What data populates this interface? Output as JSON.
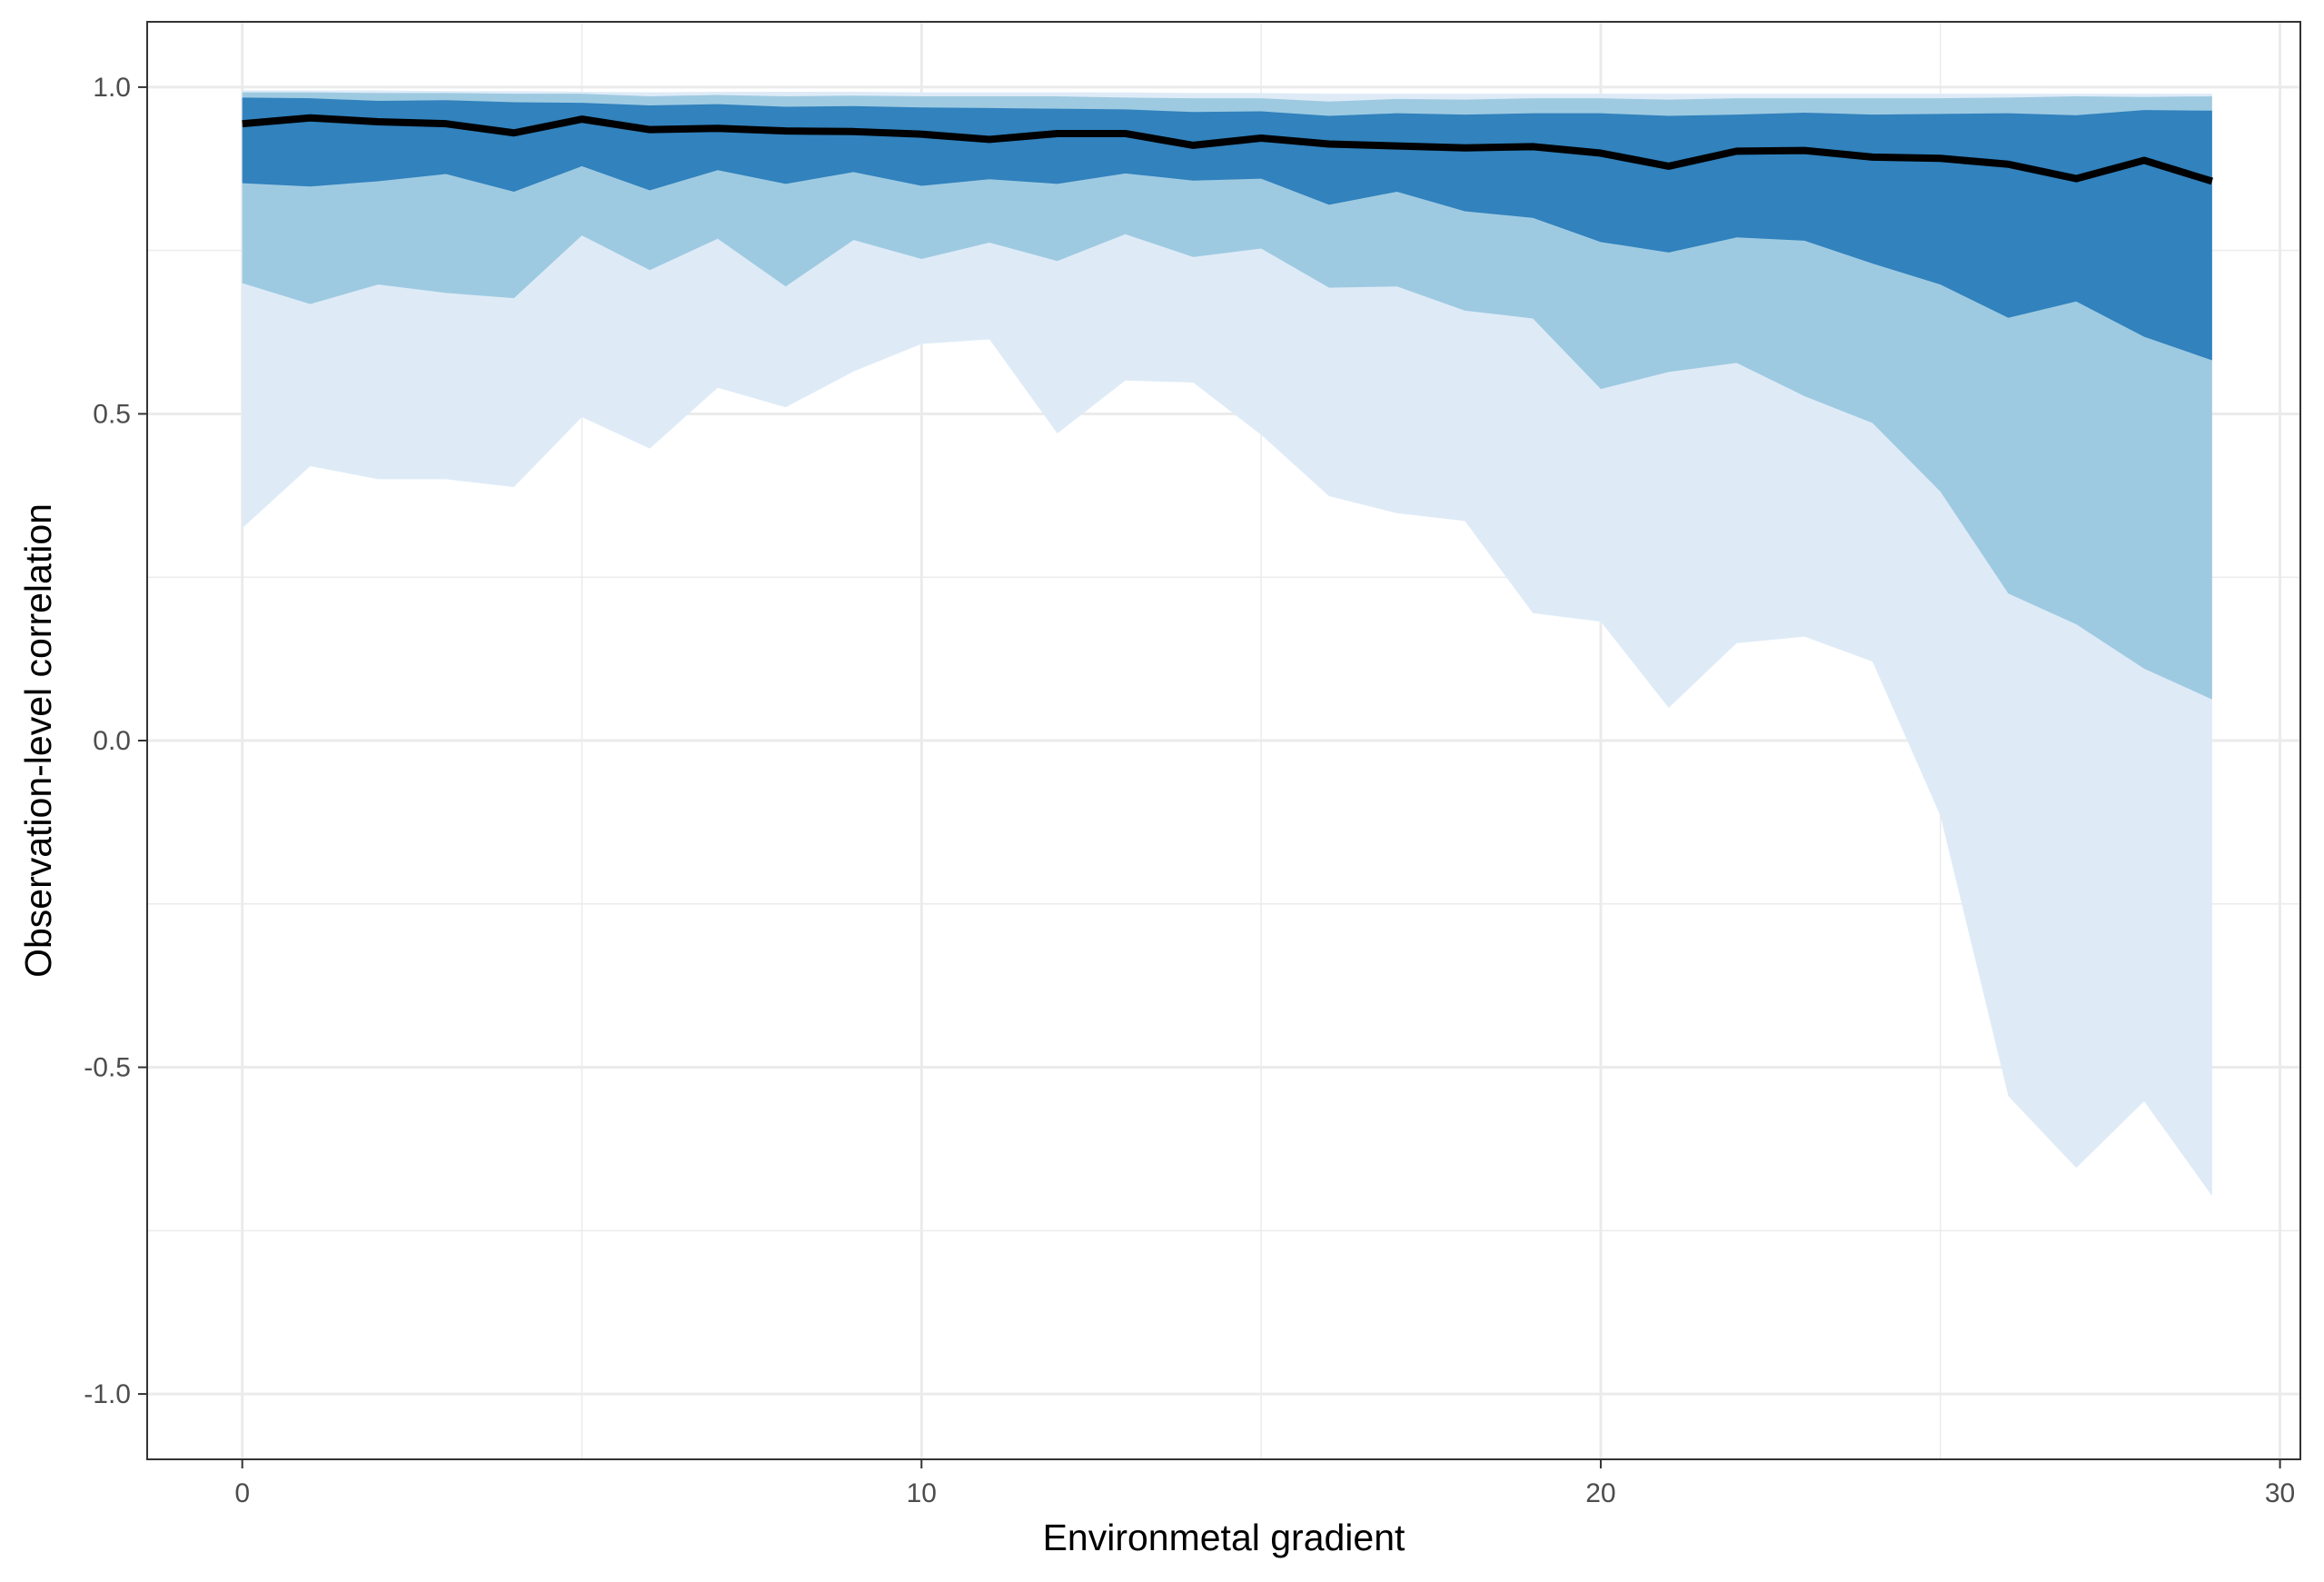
{
  "chart_data": {
    "type": "area",
    "title": "",
    "xlabel": "Environmetal gradient",
    "ylabel": "Observation-level correlation",
    "xlim": [
      -1.4,
      30.3
    ],
    "ylim": [
      -1.1,
      1.1
    ],
    "x_ticks": [
      0,
      10,
      20,
      30
    ],
    "y_ticks": [
      -1.0,
      -0.5,
      0.0,
      0.5,
      1.0
    ],
    "x_tick_labels": [
      "0",
      "10",
      "20",
      "30"
    ],
    "y_tick_labels": [
      "-1.0",
      "-0.5",
      "0.0",
      "0.5",
      "1.0"
    ],
    "grid": true,
    "legend": "none",
    "x": [
      0,
      1,
      2,
      3,
      4,
      5,
      6,
      7,
      8,
      9,
      10,
      11,
      12,
      13,
      14,
      15,
      16,
      17,
      18,
      19,
      20,
      21,
      22,
      23,
      24,
      25,
      26,
      27,
      28,
      29
    ],
    "bands": [
      {
        "color": "#deebf7",
        "lower": [
          0.325,
          0.42,
          0.4,
          0.4,
          0.388,
          0.495,
          0.447,
          0.54,
          0.51,
          0.565,
          0.607,
          0.614,
          0.47,
          0.551,
          0.548,
          0.468,
          0.374,
          0.348,
          0.336,
          0.195,
          0.182,
          0.05,
          0.149,
          0.159,
          0.121,
          -0.115,
          -0.544,
          -0.654,
          -0.552,
          -0.697
        ],
        "upper": [
          0.995,
          0.995,
          0.995,
          0.994,
          0.994,
          0.993,
          0.992,
          0.993,
          0.993,
          0.993,
          0.992,
          0.992,
          0.992,
          0.992,
          0.991,
          0.991,
          0.99,
          0.99,
          0.99,
          0.99,
          0.99,
          0.99,
          0.99,
          0.99,
          0.99,
          0.99,
          0.99,
          0.99,
          0.99,
          0.99
        ]
      },
      {
        "color": "#9ecae1",
        "lower": [
          0.7,
          0.668,
          0.698,
          0.685,
          0.677,
          0.773,
          0.72,
          0.768,
          0.695,
          0.766,
          0.737,
          0.762,
          0.734,
          0.775,
          0.74,
          0.753,
          0.693,
          0.695,
          0.658,
          0.646,
          0.538,
          0.564,
          0.578,
          0.527,
          0.486,
          0.381,
          0.225,
          0.178,
          0.11,
          0.063
        ],
        "upper": [
          0.992,
          0.992,
          0.991,
          0.991,
          0.99,
          0.99,
          0.986,
          0.988,
          0.986,
          0.987,
          0.986,
          0.986,
          0.986,
          0.984,
          0.983,
          0.983,
          0.978,
          0.982,
          0.981,
          0.983,
          0.983,
          0.981,
          0.983,
          0.983,
          0.983,
          0.983,
          0.984,
          0.986,
          0.985,
          0.986
        ]
      },
      {
        "color": "#3182bd",
        "lower": [
          0.853,
          0.848,
          0.856,
          0.867,
          0.84,
          0.879,
          0.842,
          0.873,
          0.852,
          0.87,
          0.849,
          0.859,
          0.852,
          0.868,
          0.857,
          0.86,
          0.82,
          0.84,
          0.81,
          0.8,
          0.763,
          0.747,
          0.77,
          0.765,
          0.73,
          0.698,
          0.647,
          0.672,
          0.618,
          0.582
        ],
        "upper": [
          0.984,
          0.983,
          0.979,
          0.98,
          0.977,
          0.976,
          0.972,
          0.974,
          0.97,
          0.971,
          0.969,
          0.968,
          0.967,
          0.966,
          0.962,
          0.963,
          0.956,
          0.96,
          0.958,
          0.96,
          0.96,
          0.956,
          0.958,
          0.961,
          0.958,
          0.959,
          0.96,
          0.957,
          0.965,
          0.964
        ]
      }
    ],
    "series": [
      {
        "color": "#000000",
        "values": [
          0.944,
          0.953,
          0.947,
          0.944,
          0.93,
          0.951,
          0.935,
          0.937,
          0.933,
          0.932,
          0.928,
          0.92,
          0.929,
          0.929,
          0.911,
          0.922,
          0.913,
          0.91,
          0.907,
          0.909,
          0.899,
          0.879,
          0.902,
          0.903,
          0.893,
          0.891,
          0.882,
          0.86,
          0.888,
          0.856
        ]
      }
    ]
  }
}
